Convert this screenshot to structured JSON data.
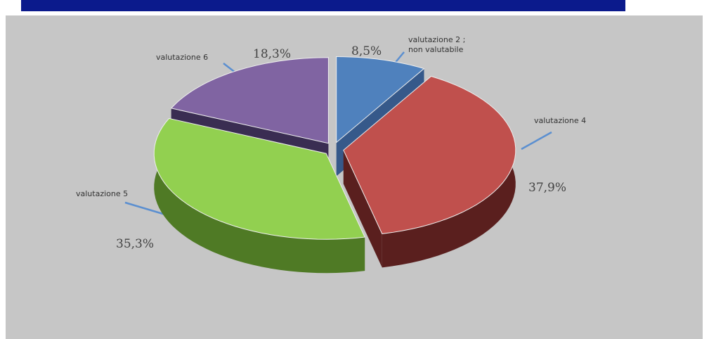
{
  "chart_data": {
    "type": "pie",
    "categories": [
      "valutazione 2 ; non valutabile",
      "valutazione 4",
      "valutazione 5",
      "valutazione 6"
    ],
    "values": [
      8.5,
      37.9,
      35.3,
      18.3
    ],
    "value_labels": [
      "8,5%",
      "37,9%",
      "35,3%",
      "18,3%"
    ],
    "colors": [
      "#4f81bd",
      "#c0504d",
      "#92d050",
      "#8064a2"
    ],
    "side_colors": [
      "#36598a",
      "#5a1f1e",
      "#4f7a25",
      "#3a2d52"
    ]
  }
}
